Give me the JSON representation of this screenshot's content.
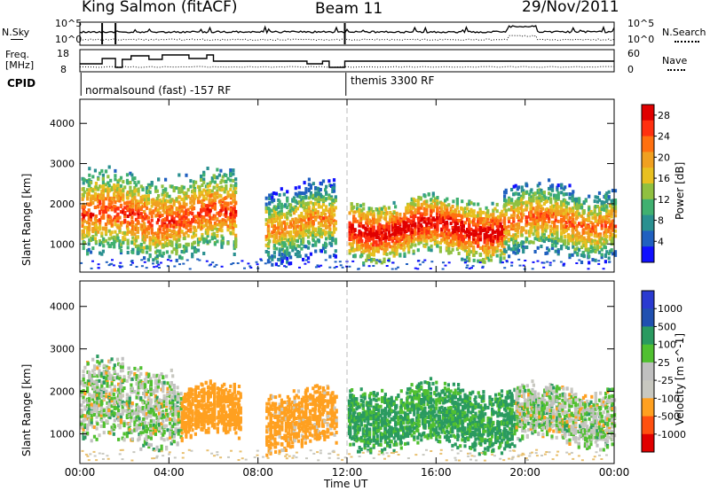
{
  "header": {
    "title": "King Salmon (fitACF)",
    "beam": "Beam 11",
    "date": "29/Nov/2011"
  },
  "noise_panel": {
    "left_label": "N.Sky",
    "right_label": "N.Search",
    "left_ticks": [
      "10^5",
      "10^0"
    ],
    "right_ticks": [
      "10^5",
      "10^0"
    ]
  },
  "freq_panel": {
    "left_label_line1": "Freq.",
    "left_label_line2": "[MHz]",
    "right_label": "Nave",
    "left_ticks": [
      "18",
      "8"
    ],
    "right_ticks": [
      "60",
      "0"
    ]
  },
  "cpid_panel": {
    "label": "CPID",
    "segments": [
      {
        "name": "normalsound (fast) -157 RF",
        "start_hour": 0.05,
        "end_hour": 11.95
      },
      {
        "name": "themis 3300 RF",
        "start_hour": 11.95,
        "end_hour": 24
      }
    ]
  },
  "x_axis": {
    "label": "Time UT",
    "ticks": [
      "00:00",
      "04:00",
      "08:00",
      "12:00",
      "16:00",
      "20:00",
      "00:00"
    ],
    "range_hours": [
      0,
      24
    ]
  },
  "colors": {
    "power_scale": [
      "#1010ff",
      "#2060c0",
      "#2a9090",
      "#40b070",
      "#90c040",
      "#e8c020",
      "#f0a020",
      "#ff7010",
      "#ff3010",
      "#e00000"
    ],
    "velocity_scale": [
      "#e00000",
      "#ff5010",
      "#ffa020",
      "#c8c8c0",
      "#c0c0c0",
      "#50c030",
      "#2a9a60",
      "#2050b0",
      "#2a3ad0"
    ]
  },
  "chart_data": [
    {
      "type": "heatmap",
      "panel": "power",
      "ylabel": "Slant Range [km]",
      "yticks": [
        "1000",
        "2000",
        "3000",
        "4000"
      ],
      "ylim": [
        300,
        4600
      ],
      "colorbar_label": "Power [dB]",
      "colorbar_ticks": [
        "4",
        "8",
        "12",
        "16",
        "20",
        "24",
        "28"
      ],
      "colorbar_range": [
        0,
        30
      ],
      "features": [
        {
          "start_hour": 0.0,
          "end_hour": 7.0,
          "range_low": 700,
          "range_high": 2600,
          "value": 18
        },
        {
          "start_hour": 8.3,
          "end_hour": 11.5,
          "range_low": 600,
          "range_high": 2300,
          "value": 14
        },
        {
          "start_hour": 12.0,
          "end_hour": 19.0,
          "range_low": 700,
          "range_high": 2000,
          "value": 22
        },
        {
          "start_hour": 19.0,
          "end_hour": 24.0,
          "range_low": 700,
          "range_high": 2300,
          "value": 16
        }
      ]
    },
    {
      "type": "heatmap",
      "panel": "velocity",
      "ylabel": "Slant Range [km]",
      "yticks": [
        "1000",
        "2000",
        "3000",
        "4000"
      ],
      "ylim": [
        300,
        4600
      ],
      "colorbar_label": "Velocity [m s^-1]",
      "colorbar_ticks": [
        "1000",
        "500",
        "100",
        "25",
        "-25",
        "-100",
        "-500",
        "-1000"
      ],
      "features": [
        {
          "start_hour": 0.0,
          "end_hour": 4.5,
          "range_low": 800,
          "range_high": 2500,
          "value": 0
        },
        {
          "start_hour": 4.5,
          "end_hour": 7.2,
          "range_low": 900,
          "range_high": 2000,
          "value": -300
        },
        {
          "start_hour": 8.3,
          "end_hour": 11.5,
          "range_low": 700,
          "range_high": 1900,
          "value": -200
        },
        {
          "start_hour": 12.0,
          "end_hour": 19.5,
          "range_low": 700,
          "range_high": 2000,
          "value": 150
        },
        {
          "start_hour": 19.5,
          "end_hour": 24.0,
          "range_low": 800,
          "range_high": 2000,
          "value": 0
        }
      ]
    }
  ]
}
